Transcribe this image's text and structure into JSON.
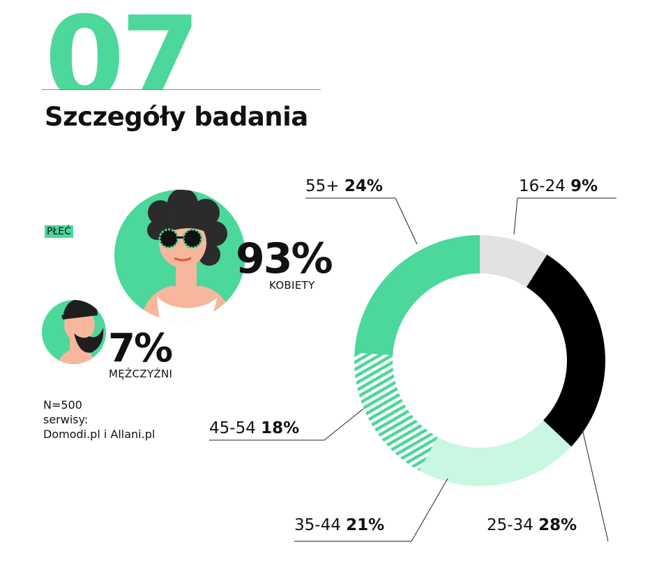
{
  "section_number": "07",
  "page_title": "Szczegóły badania",
  "gender": {
    "label": "PŁEĆ",
    "women": {
      "percent": "93%",
      "caption": "KOBIETY"
    },
    "men": {
      "percent": "7%",
      "caption": "MĘŻCZYŹNI"
    }
  },
  "info": {
    "sample": "N=500",
    "services_label": "serwisy:",
    "services": "Domodi.pl i Allani.pl"
  },
  "colors": {
    "accent": "#4cd79b",
    "light_green": "#c8f8e1",
    "gray": "#e2e2e2",
    "black": "#000000"
  },
  "chart_data": {
    "type": "pie",
    "variant": "donut",
    "categories": [
      "16-24",
      "25-34",
      "35-44",
      "45-54",
      "55+"
    ],
    "values": [
      9,
      28,
      21,
      18,
      24
    ],
    "labels": [
      "9%",
      "28%",
      "21%",
      "18%",
      "24%"
    ],
    "colors": [
      "#e2e2e2",
      "#000000",
      "#c8f8e1",
      "#4cd79b",
      "#4cd79b"
    ],
    "patterns": [
      "solid",
      "solid",
      "solid",
      "hatched",
      "solid"
    ]
  }
}
